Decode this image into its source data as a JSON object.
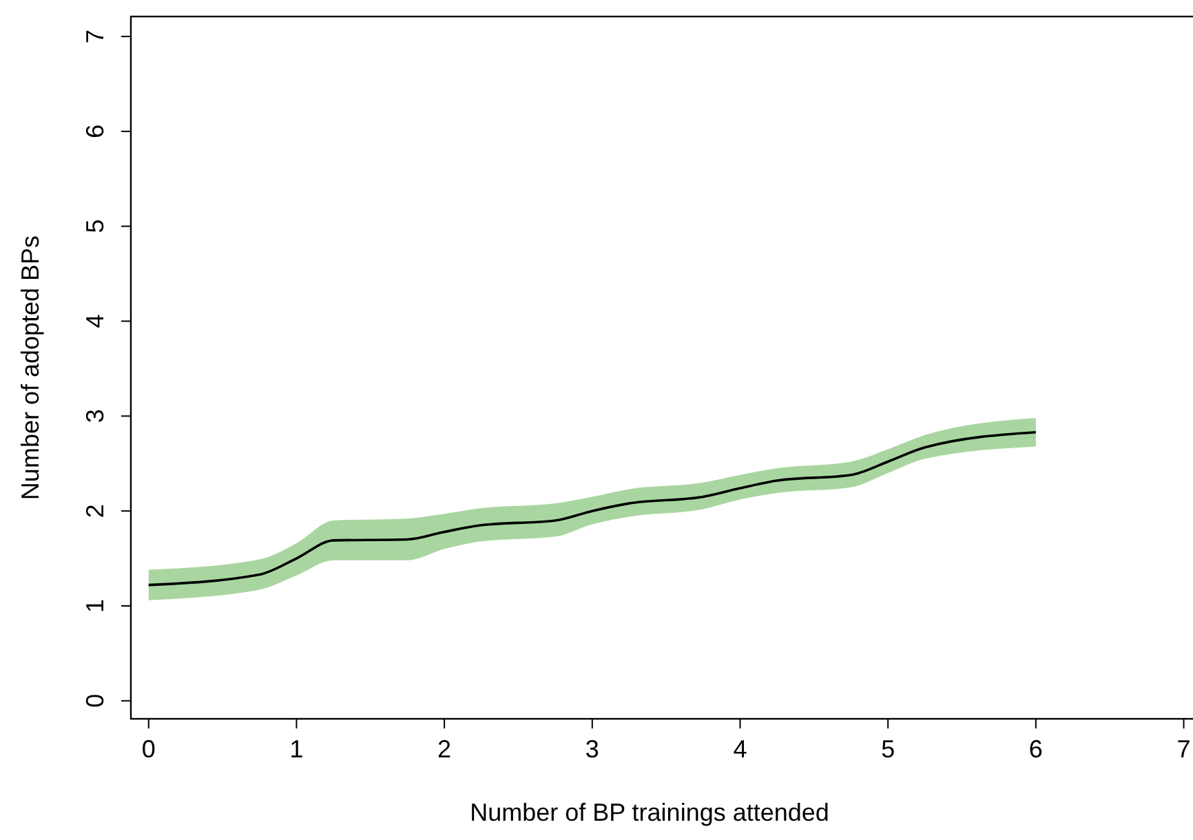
{
  "chart_data": {
    "type": "line",
    "xlabel": "Number of BP trainings attended",
    "ylabel": "Number of adopted BPs",
    "x": [
      0,
      0.75,
      1,
      1.25,
      1.75,
      2,
      2.25,
      2.75,
      3,
      3.25,
      3.75,
      4,
      4.25,
      4.75,
      5,
      5.25,
      6
    ],
    "series": [
      {
        "color": "#000000",
        "values": [
          1.22,
          1.33,
          1.5,
          1.69,
          1.7,
          1.78,
          1.85,
          1.9,
          2.0,
          2.08,
          2.15,
          2.24,
          2.32,
          2.38,
          2.52,
          2.67,
          2.83
        ],
        "lower": [
          1.06,
          1.17,
          1.32,
          1.48,
          1.48,
          1.6,
          1.68,
          1.73,
          1.86,
          1.94,
          2.02,
          2.12,
          2.19,
          2.25,
          2.4,
          2.55,
          2.68
        ],
        "upper": [
          1.38,
          1.49,
          1.66,
          1.9,
          1.92,
          1.97,
          2.03,
          2.08,
          2.15,
          2.23,
          2.3,
          2.38,
          2.45,
          2.52,
          2.65,
          2.8,
          2.98
        ]
      }
    ],
    "xlim": [
      -0.12,
      7.1
    ],
    "ylim": [
      -0.19,
      7.21
    ],
    "xticks": [
      0,
      1,
      2,
      3,
      4,
      5,
      6,
      7
    ],
    "yticks": [
      0,
      1,
      2,
      3,
      4,
      5,
      6,
      7
    ],
    "grid": false,
    "marker": "none",
    "line_style": "solid"
  }
}
